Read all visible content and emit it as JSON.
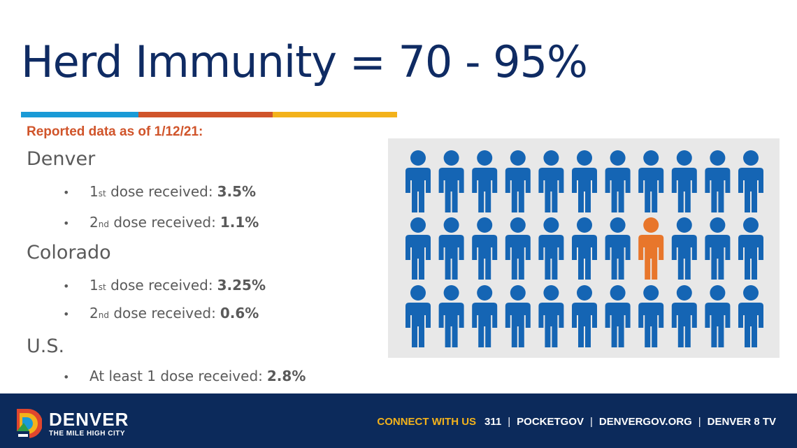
{
  "title": "Herd Immunity = 70 - 95%",
  "rule_colors": [
    "#1a9ad6",
    "#d0542a",
    "#f3b21b"
  ],
  "subtitle": "Reported data as of 1/12/21:",
  "regions": [
    {
      "name": "Denver",
      "bullets": [
        {
          "num": "1",
          "suffix": "st",
          "text": "dose received:",
          "value": "3.5%"
        },
        {
          "num": "2",
          "suffix": "nd",
          "text": "dose received:",
          "value": "1.1%"
        }
      ]
    },
    {
      "name": "Colorado",
      "bullets": [
        {
          "num": "1",
          "suffix": "st",
          "text": "dose received:",
          "value": "3.25%"
        },
        {
          "num": "2",
          "suffix": "nd",
          "text": "dose received:",
          "value": "0.6%"
        }
      ]
    },
    {
      "name": "U.S.",
      "bullets": [
        {
          "num": "",
          "suffix": "",
          "text": "At least 1 dose received:",
          "value": "2.8%"
        }
      ]
    }
  ],
  "bullet_symbol": "•",
  "graphic": {
    "rows": 3,
    "cols": 11,
    "highlight_row": 2,
    "highlight_col": 8,
    "person_color": "#1565b4",
    "highlight_color": "#e8762b"
  },
  "footer": {
    "brand": "DENVER",
    "tagline": "THE MILE HIGH CITY",
    "connect_label": "CONNECT WITH US",
    "links": [
      "311",
      "POCKETGOV",
      "DENVERGOV.ORG",
      "DENVER 8 TV"
    ],
    "separator": "|",
    "background": "#0c2a5b",
    "accent": "#f3b21b"
  }
}
